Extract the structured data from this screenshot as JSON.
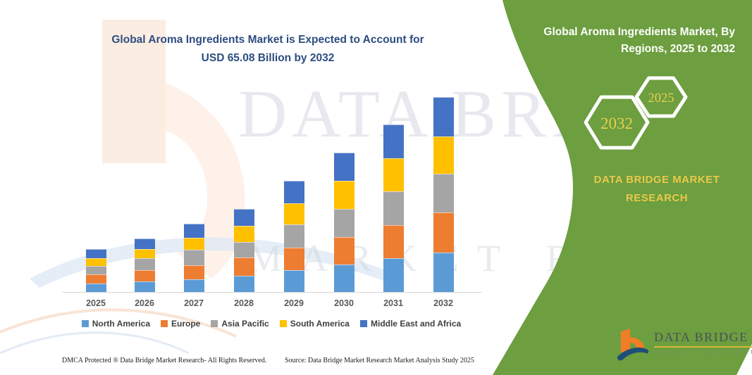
{
  "page": {
    "title_line1": "Global Aroma Ingredients Market is Expected to Account for",
    "title_line2": "USD 65.08 Billion by 2032",
    "footer_left": "DMCA Protected ® Data Bridge Market Research-  All Rights Reserved.",
    "footer_source": "Source: Data Bridge Market Research  Market Analysis Study 2025"
  },
  "watermark": {
    "line1": "DATA BRIDGE",
    "line2": "MARKET RESEARCH"
  },
  "side_panel": {
    "title_line1": "Global Aroma Ingredients Market, By",
    "title_line2": "Regions, 2025 to 2032",
    "hexagon_back_label": "2032",
    "hexagon_front_label": "2025",
    "brand_line1": "DATA BRIDGE MARKET",
    "brand_line2": "RESEARCH",
    "panel_color": "#6d9e3f",
    "accent_text_color": "#e8cf4e"
  },
  "logo": {
    "name_top": "DATA BRIDGE",
    "name_bottom": "MARKET RESEARCH"
  },
  "chart_data": {
    "type": "bar",
    "stacked": true,
    "title": "Global Aroma Ingredients Market is Expected to Account for USD 65.08 Billion by 2032",
    "unit": "USD Billion",
    "categories": [
      "2025",
      "2026",
      "2027",
      "2028",
      "2029",
      "2030",
      "2031",
      "2032"
    ],
    "series": [
      {
        "name": "North America",
        "color": "#5B9BD5",
        "values": [
          2.9,
          3.5,
          4.2,
          5.4,
          7.2,
          9.2,
          11.4,
          13.2
        ]
      },
      {
        "name": "Europe",
        "color": "#ED7D31",
        "values": [
          3.0,
          3.9,
          4.7,
          6.1,
          7.7,
          9.2,
          11.0,
          13.3
        ]
      },
      {
        "name": "Asia Pacific",
        "color": "#A5A5A5",
        "values": [
          2.7,
          3.9,
          5.1,
          5.2,
          7.6,
          9.3,
          11.2,
          12.9
        ]
      },
      {
        "name": "South America",
        "color": "#FFC000",
        "values": [
          2.6,
          3.1,
          4.2,
          5.5,
          7.2,
          9.4,
          11.0,
          12.5
        ]
      },
      {
        "name": "Middle East and Africa",
        "color": "#4472C4",
        "values": [
          3.1,
          3.5,
          4.5,
          5.5,
          7.5,
          9.4,
          11.4,
          13.18
        ]
      }
    ],
    "totals_estimated": [
      14.3,
      17.9,
      22.7,
      27.7,
      37.2,
      46.5,
      56.0,
      65.08
    ],
    "final_year_total": 65.08,
    "xlabel": "",
    "ylabel": "",
    "yaxis_visible": false,
    "grid": false,
    "ylim": [
      0,
      70
    ],
    "legend_position": "bottom"
  }
}
